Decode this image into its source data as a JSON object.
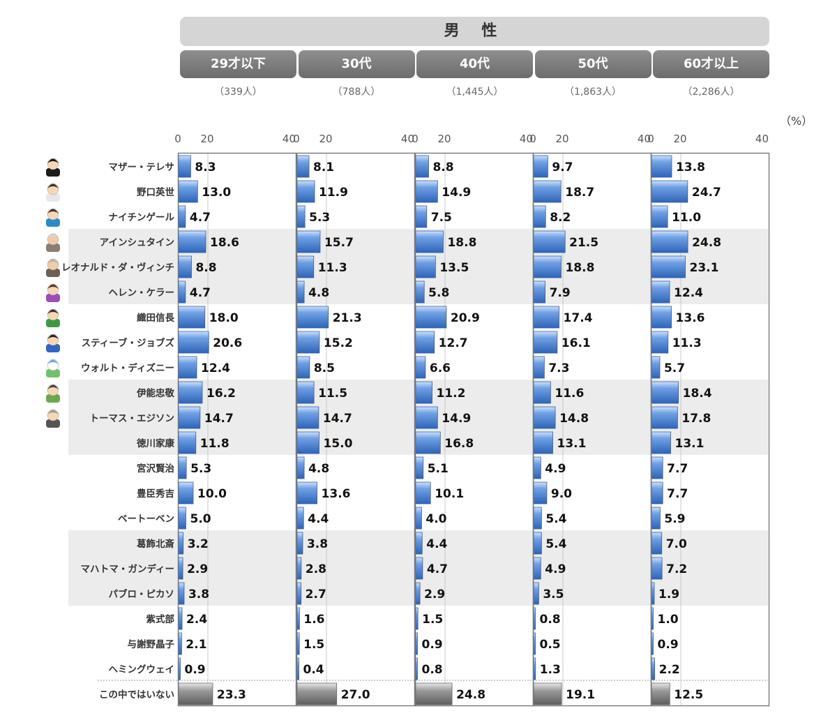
{
  "header_title": "男 性",
  "unit_label": "（%）",
  "age_groups": [
    {
      "label": "29才以下",
      "count": "（339人）"
    },
    {
      "label": "30代",
      "count": "（788人）"
    },
    {
      "label": "40代",
      "count": "（1,445人）"
    },
    {
      "label": "50代",
      "count": "（1,863人）"
    },
    {
      "label": "60才以上",
      "count": "（2,286人）"
    }
  ],
  "colors": {
    "bar": "#4f87d6",
    "none_bar": "#8c8c8c",
    "band": "#ececec"
  },
  "icons": [
    "nun-icon",
    "doctor-icon",
    "nurse-icon",
    "einstein-icon",
    "davinci-icon",
    "helen-keller-icon",
    "samurai-icon",
    "steve-jobs-icon",
    "castle-icon",
    "surveyor-icon",
    "edison-icon"
  ],
  "chart_data": {
    "type": "bar",
    "orientation": "horizontal",
    "xlim": [
      0,
      40
    ],
    "xticks": [
      "0",
      "20",
      "40"
    ],
    "categories": [
      "マザー・テレサ",
      "野口英世",
      "ナイチンゲール",
      "アインシュタイン",
      "レオナルド・ダ・ヴィンチ",
      "ヘレン・ケラー",
      "織田信長",
      "スティーブ・ジョブズ",
      "ウォルト・ディズニー",
      "伊能忠敬",
      "トーマス・エジソン",
      "徳川家康",
      "宮沢賢治",
      "豊臣秀吉",
      "ベートーベン",
      "葛飾北斎",
      "マハトマ・ガンディー",
      "パブロ・ピカソ",
      "紫式部",
      "与謝野晶子",
      "ヘミングウェイ",
      "この中ではいない"
    ],
    "series": [
      {
        "name": "29才以下",
        "values": [
          "8.3",
          "13.0",
          "4.7",
          "18.6",
          "8.8",
          "4.7",
          "18.0",
          "20.6",
          "12.4",
          "16.2",
          "14.7",
          "11.8",
          "5.3",
          "10.0",
          "5.0",
          "3.2",
          "2.9",
          "3.8",
          "2.4",
          "2.1",
          "0.9",
          "23.3"
        ]
      },
      {
        "name": "30代",
        "values": [
          "8.1",
          "11.9",
          "5.3",
          "15.7",
          "11.3",
          "4.8",
          "21.3",
          "15.2",
          "8.5",
          "11.5",
          "14.7",
          "15.0",
          "4.8",
          "13.6",
          "4.4",
          "3.8",
          "2.8",
          "2.7",
          "1.6",
          "1.5",
          "0.4",
          "27.0"
        ]
      },
      {
        "name": "40代",
        "values": [
          "8.8",
          "14.9",
          "7.5",
          "18.8",
          "13.5",
          "5.8",
          "20.9",
          "12.7",
          "6.6",
          "11.2",
          "14.9",
          "16.8",
          "5.1",
          "10.1",
          "4.0",
          "4.4",
          "4.7",
          "2.9",
          "1.5",
          "0.9",
          "0.8",
          "24.8"
        ]
      },
      {
        "name": "50代",
        "values": [
          "9.7",
          "18.7",
          "8.2",
          "21.5",
          "18.8",
          "7.9",
          "17.4",
          "16.1",
          "7.3",
          "11.6",
          "14.8",
          "13.1",
          "4.9",
          "9.0",
          "5.4",
          "5.4",
          "4.9",
          "3.5",
          "0.8",
          "0.5",
          "1.3",
          "19.1"
        ]
      },
      {
        "name": "60才以上",
        "values": [
          "13.8",
          "24.7",
          "11.0",
          "24.8",
          "23.1",
          "12.4",
          "13.6",
          "11.3",
          "5.7",
          "18.4",
          "17.8",
          "13.1",
          "7.7",
          "7.7",
          "5.9",
          "7.0",
          "7.2",
          "1.9",
          "1.0",
          "0.9",
          "2.2",
          "12.5"
        ]
      }
    ]
  }
}
